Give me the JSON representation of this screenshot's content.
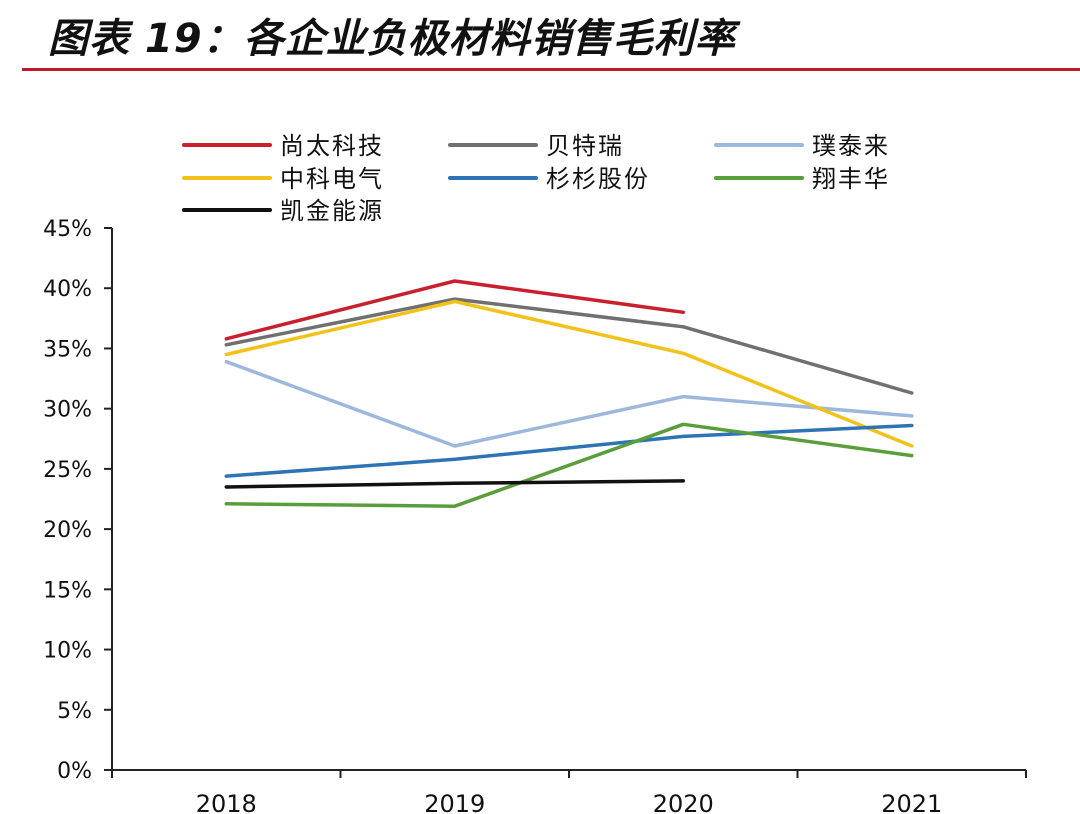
{
  "page": {
    "title": "图表 19：各企业负极材料销售毛利率"
  },
  "chart_data": {
    "type": "line",
    "title": "图表 19：各企业负极材料销售毛利率",
    "xlabel": "",
    "ylabel": "",
    "categories": [
      "2018",
      "2019",
      "2020",
      "2021"
    ],
    "ylim": [
      0,
      45
    ],
    "y_ticks": [
      "0%",
      "5%",
      "10%",
      "15%",
      "20%",
      "25%",
      "30%",
      "35%",
      "40%",
      "45%"
    ],
    "legend_position": "top",
    "grid": false,
    "series": [
      {
        "name": "尚太科技",
        "color": "#c8202e",
        "values": [
          35.8,
          40.6,
          38.0,
          null
        ]
      },
      {
        "name": "贝特瑞",
        "color": "#707070",
        "values": [
          35.3,
          39.1,
          36.8,
          31.3
        ]
      },
      {
        "name": "璞泰来",
        "color": "#9db8dc",
        "values": [
          33.9,
          26.9,
          31.0,
          29.4
        ]
      },
      {
        "name": "中科电气",
        "color": "#f2c21b",
        "values": [
          34.5,
          38.9,
          34.6,
          26.9
        ]
      },
      {
        "name": "杉杉股份",
        "color": "#2e74b5",
        "values": [
          24.4,
          25.8,
          27.7,
          28.6
        ]
      },
      {
        "name": "翔丰华",
        "color": "#5a9e3c",
        "values": [
          22.1,
          21.9,
          28.7,
          26.1
        ]
      },
      {
        "name": "凯金能源",
        "color": "#111111",
        "values": [
          23.5,
          23.8,
          24.0,
          null
        ]
      }
    ]
  }
}
